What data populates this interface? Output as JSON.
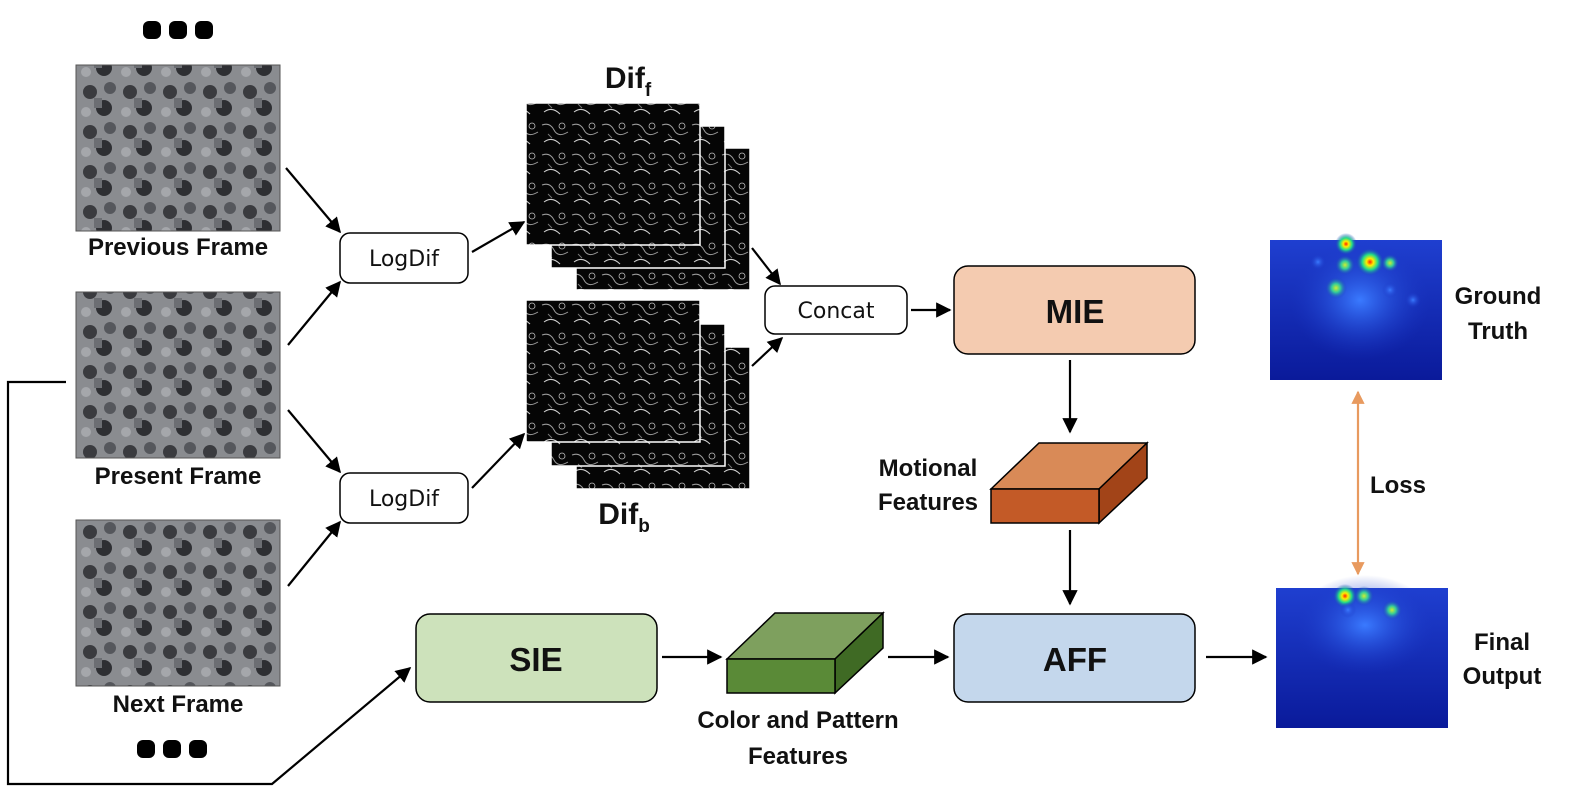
{
  "frames": {
    "previous_label": "Previous Frame",
    "present_label": "Present Frame",
    "next_label": "Next Frame"
  },
  "ops": {
    "logdif_top": "LogDif",
    "logdif_bottom": "LogDif",
    "concat": "Concat"
  },
  "diffs": {
    "forward_base": "Dif",
    "forward_sub": "f",
    "backward_base": "Dif",
    "backward_sub": "b"
  },
  "modules": {
    "mie": "MIE",
    "sie": "SIE",
    "aff": "AFF"
  },
  "features": {
    "motional_line1": "Motional",
    "motional_line2": "Features",
    "color_line1": "Color and Pattern",
    "color_line2": "Features"
  },
  "outputs": {
    "gt_line1": "Ground",
    "gt_line2": "Truth",
    "final_line1": "Final",
    "final_line2": "Output",
    "loss": "Loss"
  },
  "colors": {
    "mie_fill": "#f4cbb0",
    "sie_fill": "#cde2bb",
    "aff_fill": "#c4d7ec",
    "motional_front": "#c35a27",
    "motional_top": "#d98a57",
    "color_front": "#5a8a37",
    "color_top": "#7ea05e",
    "loss_arrow": "#e89a5f",
    "heatmap_bg": "#1a35c4"
  }
}
